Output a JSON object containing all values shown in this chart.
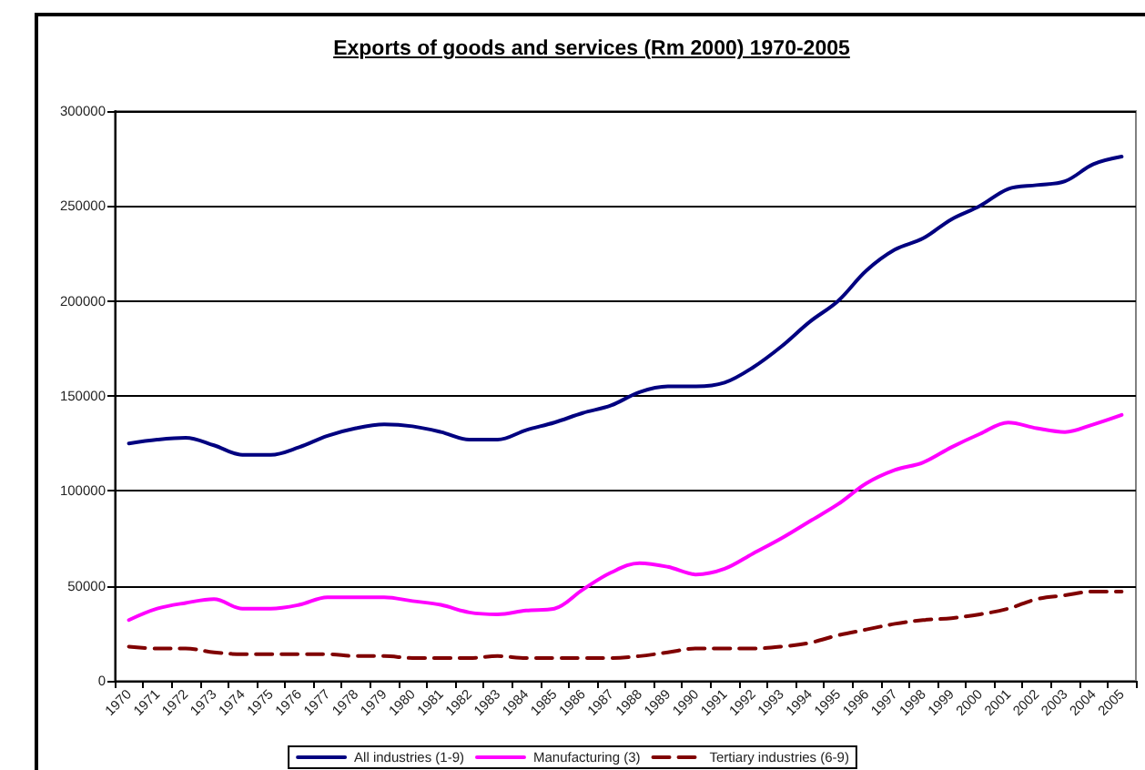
{
  "chart_data": {
    "type": "line",
    "title": "Exports of goods and services (Rm 2000) 1970-2005",
    "categories": [
      "1970",
      "1971",
      "1972",
      "1973",
      "1974",
      "1975",
      "1976",
      "1977",
      "1978",
      "1979",
      "1980",
      "1981",
      "1982",
      "1983",
      "1984",
      "1985",
      "1986",
      "1987",
      "1988",
      "1989",
      "1990",
      "1991",
      "1992",
      "1993",
      "1994",
      "1995",
      "1996",
      "1997",
      "1998",
      "1999",
      "2000",
      "2001",
      "2002",
      "2003",
      "2004",
      "2005"
    ],
    "series": [
      {
        "name": "All industries (1-9)",
        "color": "#000080",
        "line_style": "solid",
        "values": [
          125000,
          127000,
          128000,
          124000,
          119000,
          119000,
          123000,
          129000,
          133000,
          135000,
          134000,
          131000,
          127000,
          127000,
          132000,
          136000,
          141000,
          145000,
          152000,
          155000,
          155000,
          157000,
          165000,
          176000,
          189000,
          200000,
          216000,
          227000,
          233000,
          243000,
          250000,
          259000,
          261000,
          263000,
          272000,
          276000
        ]
      },
      {
        "name": "Manufacturing (3)",
        "color": "#ff00ff",
        "line_style": "solid",
        "values": [
          32000,
          38000,
          41000,
          43000,
          38000,
          38000,
          40000,
          44000,
          44000,
          44000,
          42000,
          40000,
          36000,
          35000,
          37000,
          38000,
          48000,
          57000,
          62000,
          60000,
          56000,
          59000,
          67000,
          75000,
          84000,
          93000,
          104000,
          111000,
          115000,
          123000,
          130000,
          136000,
          133000,
          131000,
          135000,
          140000
        ]
      },
      {
        "name": "Tertiary industries (6-9)",
        "color": "#800000",
        "line_style": "dashed",
        "values": [
          18000,
          17000,
          17000,
          15000,
          14000,
          14000,
          14000,
          14000,
          13000,
          13000,
          12000,
          12000,
          12000,
          13000,
          12000,
          12000,
          12000,
          12000,
          13000,
          15000,
          17000,
          17000,
          17000,
          18000,
          20000,
          24000,
          27000,
          30000,
          32000,
          33000,
          35000,
          38000,
          43000,
          45000,
          47000,
          47000
        ]
      }
    ],
    "ylim": [
      0,
      300000
    ],
    "yticks": [
      0,
      50000,
      100000,
      150000,
      200000,
      250000,
      300000
    ],
    "grid": "y",
    "legend": "bottom"
  }
}
